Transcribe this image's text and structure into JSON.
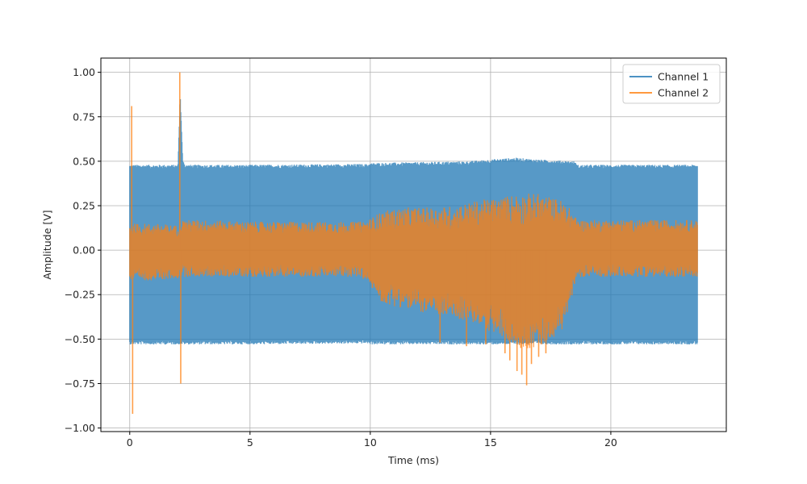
{
  "chart_data": {
    "type": "line",
    "xlabel": "Time (ms)",
    "ylabel": "Amplitude [V]",
    "xlim": [
      -1.2,
      24.8
    ],
    "ylim": [
      -1.02,
      1.08
    ],
    "xticks": [
      0,
      5,
      10,
      15,
      20
    ],
    "yticks": [
      -1.0,
      -0.75,
      -0.5,
      -0.25,
      0.0,
      0.25,
      0.5,
      0.75,
      1.0
    ],
    "ytick_labels": [
      "−1.00",
      "−0.75",
      "−0.50",
      "−0.25",
      "0.00",
      "0.25",
      "0.50",
      "0.75",
      "1.00"
    ],
    "grid": true,
    "legend_position": "top-right",
    "series": [
      {
        "name": "Channel 1",
        "color": "#1f77b4",
        "x_range": [
          0,
          23.6
        ],
        "envelope": {
          "x": [
            0.0,
            0.1,
            2.0,
            2.1,
            2.2,
            2.3,
            5.0,
            9.9,
            10.0,
            14.0,
            15.0,
            16.0,
            17.0,
            18.5,
            18.6,
            23.5,
            23.6
          ],
          "upper": [
            0.48,
            0.48,
            0.48,
            0.88,
            0.52,
            0.48,
            0.48,
            0.485,
            0.49,
            0.5,
            0.51,
            0.52,
            0.51,
            0.5,
            0.48,
            0.48,
            0.48
          ],
          "lower": [
            -0.53,
            -0.53,
            -0.53,
            -0.53,
            -0.53,
            -0.53,
            -0.53,
            -0.525,
            -0.53,
            -0.53,
            -0.53,
            -0.53,
            -0.53,
            -0.53,
            -0.53,
            -0.53,
            -0.53
          ]
        }
      },
      {
        "name": "Channel 2",
        "color": "#ff7f0e",
        "x_range": [
          0,
          23.6
        ],
        "envelope": {
          "x": [
            0.0,
            0.1,
            1.0,
            2.0,
            2.1,
            3.0,
            5.0,
            9.5,
            9.9,
            10.5,
            11.5,
            12.5,
            13.5,
            14.5,
            15.5,
            16.0,
            16.5,
            17.0,
            17.5,
            18.0,
            18.4,
            18.6,
            19.0,
            21.0,
            23.6
          ],
          "upper": [
            0.15,
            0.15,
            0.15,
            0.14,
            0.17,
            0.17,
            0.16,
            0.16,
            0.17,
            0.22,
            0.24,
            0.24,
            0.25,
            0.28,
            0.3,
            0.32,
            0.32,
            0.32,
            0.3,
            0.28,
            0.22,
            0.17,
            0.17,
            0.17,
            0.17
          ],
          "lower": [
            -0.17,
            -0.17,
            -0.17,
            -0.16,
            -0.15,
            -0.15,
            -0.15,
            -0.15,
            -0.18,
            -0.3,
            -0.33,
            -0.36,
            -0.38,
            -0.42,
            -0.5,
            -0.54,
            -0.56,
            -0.55,
            -0.5,
            -0.45,
            -0.25,
            -0.15,
            -0.15,
            -0.15,
            -0.15
          ]
        },
        "spikes": [
          {
            "x": 0.08,
            "y": 0.81
          },
          {
            "x": 0.12,
            "y": -0.92
          },
          {
            "x": 2.08,
            "y": 1.0
          },
          {
            "x": 2.12,
            "y": -0.75
          },
          {
            "x": 15.6,
            "y": -0.58
          },
          {
            "x": 15.8,
            "y": -0.62
          },
          {
            "x": 16.1,
            "y": -0.68
          },
          {
            "x": 16.3,
            "y": -0.7
          },
          {
            "x": 16.5,
            "y": -0.76
          },
          {
            "x": 16.7,
            "y": -0.64
          },
          {
            "x": 17.0,
            "y": -0.6
          },
          {
            "x": 17.3,
            "y": -0.58
          },
          {
            "x": 12.9,
            "y": -0.52
          },
          {
            "x": 14.0,
            "y": -0.54
          },
          {
            "x": 14.8,
            "y": -0.53
          }
        ]
      }
    ]
  }
}
